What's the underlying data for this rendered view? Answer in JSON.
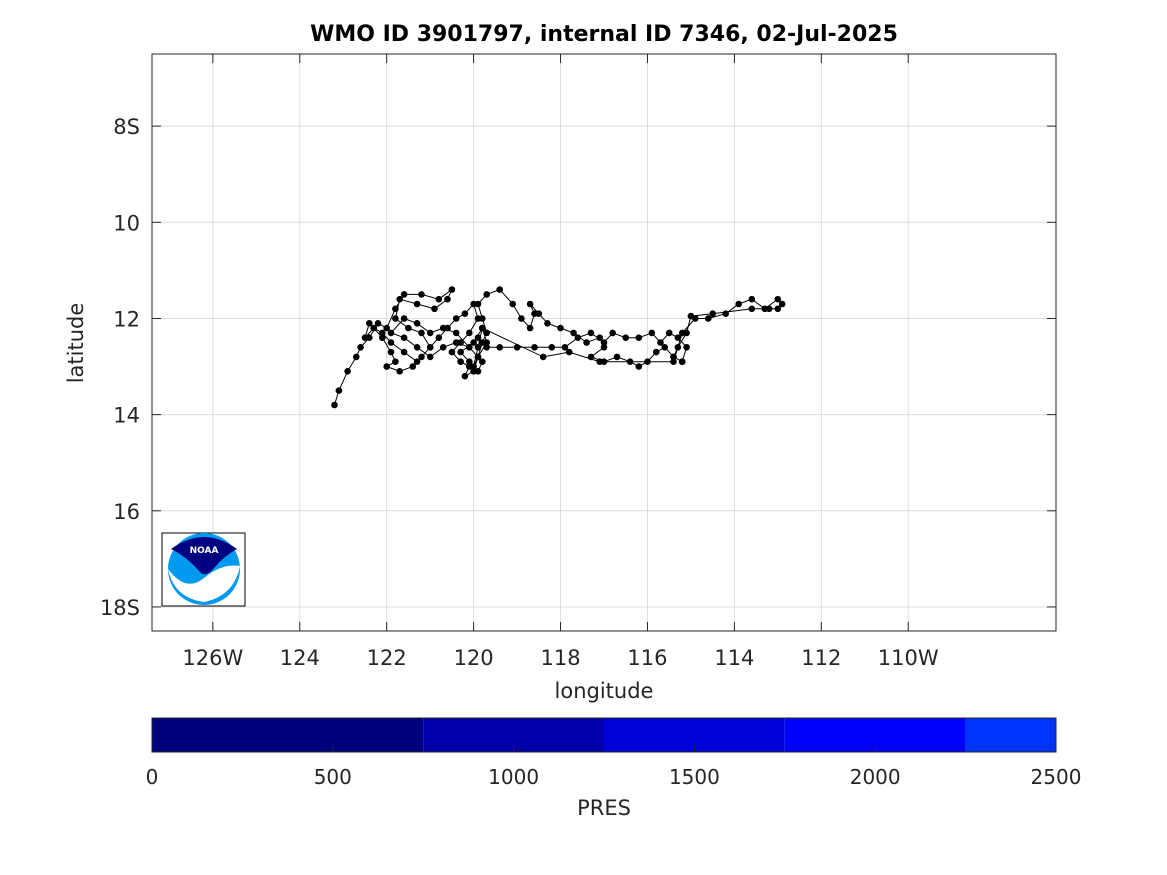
{
  "chart_data": {
    "type": "line",
    "title": "WMO ID 3901797, internal ID 7346, 02-Jul-2025",
    "xlabel": "longitude",
    "ylabel": "latitude",
    "xlim": [
      -127.4,
      -106.6
    ],
    "ylim": [
      -18.5,
      -6.5
    ],
    "xticks": [
      {
        "value": -126,
        "label": "126W"
      },
      {
        "value": -124,
        "label": "124"
      },
      {
        "value": -122,
        "label": "122"
      },
      {
        "value": -120,
        "label": "120"
      },
      {
        "value": -118,
        "label": "118"
      },
      {
        "value": -116,
        "label": "116"
      },
      {
        "value": -114,
        "label": "114"
      },
      {
        "value": -112,
        "label": "112"
      },
      {
        "value": -110,
        "label": "110W"
      }
    ],
    "yticks": [
      {
        "value": -8,
        "label": "8S"
      },
      {
        "value": -10,
        "label": "10"
      },
      {
        "value": -12,
        "label": "12"
      },
      {
        "value": -14,
        "label": "14"
      },
      {
        "value": -16,
        "label": "16"
      },
      {
        "value": -18,
        "label": "18S"
      }
    ],
    "grid": true,
    "series": [
      {
        "marker": "dot",
        "color": "#000000",
        "points": [
          [
            -123.2,
            -13.8
          ],
          [
            -123.1,
            -13.5
          ],
          [
            -122.9,
            -13.1
          ],
          [
            -122.7,
            -12.8
          ],
          [
            -122.6,
            -12.6
          ],
          [
            -122.4,
            -12.4
          ],
          [
            -122.2,
            -12.1
          ],
          [
            -122.0,
            -12.2
          ],
          [
            -121.8,
            -11.8
          ],
          [
            -121.6,
            -11.5
          ],
          [
            -121.2,
            -11.5
          ],
          [
            -120.8,
            -11.6
          ],
          [
            -120.5,
            -11.4
          ],
          [
            -120.6,
            -11.6
          ],
          [
            -120.9,
            -11.8
          ],
          [
            -121.3,
            -11.7
          ],
          [
            -121.7,
            -11.6
          ],
          [
            -121.8,
            -12.0
          ],
          [
            -121.5,
            -12.2
          ],
          [
            -121.2,
            -12.3
          ],
          [
            -121.0,
            -12.6
          ],
          [
            -121.3,
            -12.9
          ],
          [
            -121.6,
            -12.7
          ],
          [
            -121.9,
            -12.5
          ],
          [
            -122.1,
            -12.3
          ],
          [
            -122.3,
            -12.2
          ],
          [
            -122.5,
            -12.4
          ],
          [
            -122.4,
            -12.1
          ],
          [
            -122.1,
            -12.4
          ],
          [
            -121.9,
            -12.7
          ],
          [
            -121.8,
            -12.9
          ],
          [
            -122.0,
            -13.0
          ],
          [
            -121.7,
            -13.1
          ],
          [
            -121.4,
            -13.0
          ],
          [
            -121.2,
            -12.8
          ],
          [
            -121.0,
            -12.6
          ],
          [
            -120.8,
            -12.4
          ],
          [
            -120.6,
            -12.2
          ],
          [
            -120.4,
            -12.0
          ],
          [
            -120.2,
            -11.9
          ],
          [
            -120.0,
            -11.7
          ],
          [
            -119.9,
            -12.0
          ],
          [
            -120.1,
            -12.3
          ],
          [
            -120.3,
            -12.5
          ],
          [
            -120.5,
            -12.7
          ],
          [
            -120.3,
            -12.9
          ],
          [
            -120.1,
            -13.0
          ],
          [
            -120.2,
            -13.2
          ],
          [
            -120.0,
            -13.1
          ],
          [
            -119.9,
            -12.8
          ],
          [
            -119.8,
            -12.5
          ],
          [
            -119.7,
            -12.3
          ],
          [
            -119.8,
            -12.0
          ],
          [
            -119.9,
            -11.7
          ],
          [
            -119.7,
            -11.5
          ],
          [
            -119.4,
            -11.4
          ],
          [
            -119.1,
            -11.7
          ],
          [
            -118.9,
            -12.0
          ],
          [
            -118.7,
            -12.2
          ],
          [
            -118.6,
            -11.9
          ],
          [
            -118.7,
            -11.7
          ],
          [
            -118.5,
            -11.9
          ],
          [
            -118.3,
            -12.1
          ],
          [
            -118.0,
            -12.2
          ],
          [
            -117.7,
            -12.3
          ],
          [
            -117.4,
            -12.5
          ],
          [
            -117.1,
            -12.4
          ],
          [
            -117.0,
            -12.6
          ],
          [
            -117.3,
            -12.8
          ],
          [
            -117.0,
            -12.9
          ],
          [
            -116.7,
            -12.8
          ],
          [
            -116.4,
            -12.9
          ],
          [
            -116.2,
            -13.0
          ],
          [
            -116.0,
            -12.9
          ],
          [
            -115.8,
            -12.7
          ],
          [
            -115.6,
            -12.6
          ],
          [
            -115.4,
            -12.8
          ],
          [
            -115.2,
            -12.9
          ],
          [
            -115.1,
            -12.6
          ],
          [
            -115.3,
            -12.4
          ],
          [
            -115.5,
            -12.3
          ],
          [
            -115.7,
            -12.5
          ],
          [
            -115.9,
            -12.3
          ],
          [
            -116.2,
            -12.4
          ],
          [
            -116.5,
            -12.4
          ],
          [
            -116.8,
            -12.3
          ],
          [
            -117.0,
            -12.5
          ],
          [
            -117.3,
            -12.3
          ],
          [
            -117.6,
            -12.4
          ],
          [
            -117.9,
            -12.6
          ],
          [
            -118.2,
            -12.6
          ],
          [
            -118.6,
            -12.6
          ],
          [
            -119.0,
            -12.6
          ],
          [
            -119.4,
            -12.6
          ],
          [
            -119.7,
            -12.6
          ],
          [
            -119.9,
            -12.4
          ],
          [
            -120.1,
            -12.6
          ],
          [
            -120.4,
            -12.5
          ],
          [
            -120.7,
            -12.6
          ],
          [
            -121.0,
            -12.8
          ],
          [
            -121.3,
            -12.6
          ],
          [
            -121.6,
            -12.4
          ],
          [
            -121.9,
            -12.3
          ],
          [
            -121.6,
            -12.0
          ],
          [
            -121.3,
            -12.1
          ],
          [
            -121.0,
            -12.3
          ],
          [
            -120.7,
            -12.2
          ],
          [
            -120.4,
            -12.3
          ],
          [
            -120.1,
            -12.6
          ],
          [
            -119.8,
            -12.9
          ],
          [
            -119.9,
            -13.1
          ],
          [
            -120.1,
            -12.9
          ],
          [
            -120.3,
            -12.7
          ],
          [
            -120.0,
            -12.5
          ],
          [
            -119.8,
            -12.2
          ],
          [
            -119.9,
            -12.6
          ],
          [
            -120.0,
            -13.0
          ],
          [
            -119.9,
            -12.8
          ],
          [
            -119.7,
            -12.5
          ],
          [
            -119.8,
            -12.2
          ],
          [
            -118.4,
            -12.8
          ],
          [
            -117.8,
            -12.7
          ],
          [
            -117.1,
            -12.9
          ],
          [
            -115.4,
            -12.9
          ],
          [
            -115.2,
            -12.3
          ],
          [
            -114.9,
            -12.0
          ],
          [
            -114.6,
            -12.0
          ],
          [
            -114.2,
            -11.9
          ],
          [
            -113.9,
            -11.7
          ],
          [
            -113.6,
            -11.6
          ],
          [
            -113.3,
            -11.8
          ],
          [
            -113.0,
            -11.6
          ],
          [
            -112.9,
            -11.7
          ],
          [
            -113.0,
            -11.8
          ],
          [
            -113.2,
            -11.8
          ],
          [
            -113.6,
            -11.8
          ],
          [
            -114.5,
            -11.9
          ],
          [
            -115.0,
            -11.95
          ],
          [
            -115.1,
            -12.3
          ],
          [
            -115.3,
            -12.6
          ],
          [
            -115.4,
            -12.8
          ],
          [
            -115.2,
            -12.9
          ]
        ]
      }
    ],
    "colorbar": {
      "label": "PRES",
      "range": [
        0,
        2500
      ],
      "ticks": [
        "0",
        "500",
        "1000",
        "1500",
        "2000",
        "2500"
      ],
      "segments": [
        {
          "from": 0,
          "to": 750,
          "color": "#00007f"
        },
        {
          "from": 750,
          "to": 1250,
          "color": "#0000aa"
        },
        {
          "from": 1250,
          "to": 1750,
          "color": "#0000d8"
        },
        {
          "from": 1750,
          "to": 2250,
          "color": "#0000ff"
        },
        {
          "from": 2250,
          "to": 2500,
          "color": "#0033ff"
        }
      ]
    },
    "logo": {
      "text": "NOAA",
      "dark": "#000080",
      "light": "#0099f0"
    }
  }
}
